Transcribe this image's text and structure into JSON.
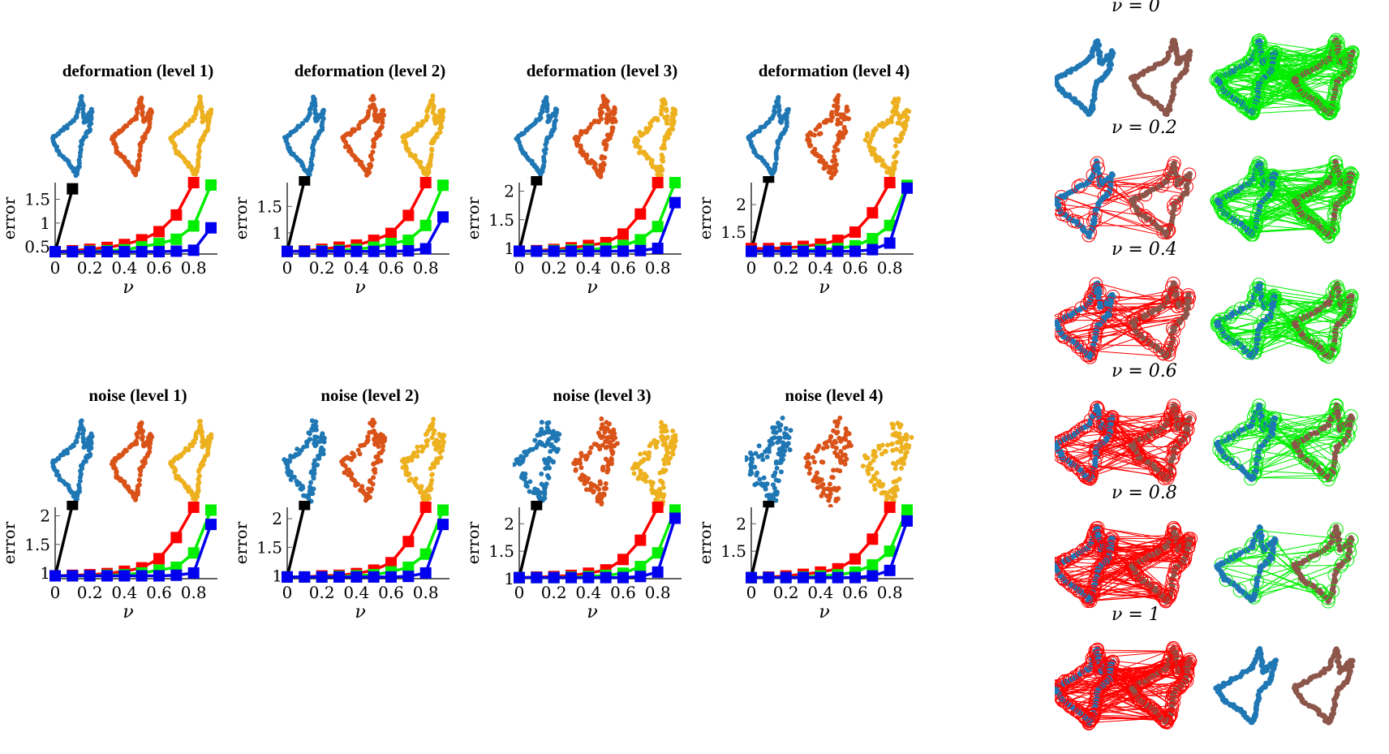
{
  "figure": {
    "row_titles_top": [
      "deformation (level 1)",
      "deformation (level 2)",
      "deformation (level 3)",
      "deformation (level 4)"
    ],
    "row_titles_bottom": [
      "noise (level 1)",
      "noise (level 2)",
      "noise (level 3)",
      "noise (level 4)"
    ],
    "right_column_titles": [
      "ν = 0",
      "ν = 0.2",
      "ν = 0.4",
      "ν = 0.6",
      "ν = 0.8",
      "ν = 1"
    ],
    "xlabel": "ν",
    "ylabel": "error",
    "shape_colors": {
      "blue": "#1f77b4",
      "orange": "#d95319",
      "yellow": "#edb120",
      "brown": "#8c564b"
    },
    "match_colors": {
      "wrong": "#ff0000",
      "correct": "#00ee00"
    }
  },
  "chart_data": [
    {
      "type": "line",
      "title": "deformation (level 1)",
      "xlabel": "ν",
      "ylabel": "error",
      "x": [
        0,
        0.1,
        0.2,
        0.3,
        0.4,
        0.5,
        0.6,
        0.7,
        0.8,
        0.9
      ],
      "xticks": [
        "0",
        "0.2",
        "0.4",
        "0.6",
        "0.8"
      ],
      "yticks": [
        "0.5",
        "1",
        "1.5"
      ],
      "ylim": [
        0.35,
        1.85
      ],
      "series": [
        {
          "name": "black",
          "color": "#000000",
          "values": [
            0.4,
            1.72,
            null,
            null,
            null,
            null,
            null,
            null,
            null,
            null
          ]
        },
        {
          "name": "red",
          "color": "#ff0000",
          "values": [
            0.4,
            0.42,
            0.45,
            0.49,
            0.55,
            0.65,
            0.82,
            1.17,
            1.85,
            null
          ]
        },
        {
          "name": "green",
          "color": "#00ee00",
          "values": [
            0.4,
            0.4,
            0.41,
            0.42,
            0.44,
            0.5,
            0.57,
            0.66,
            0.94,
            1.8
          ]
        },
        {
          "name": "blue",
          "color": "#0000ee",
          "values": [
            0.4,
            0.4,
            0.4,
            0.4,
            0.4,
            0.4,
            0.4,
            0.41,
            0.43,
            0.9
          ]
        }
      ]
    },
    {
      "type": "line",
      "title": "deformation (level 2)",
      "xlabel": "ν",
      "ylabel": "error",
      "x": [
        0,
        0.1,
        0.2,
        0.3,
        0.4,
        0.5,
        0.6,
        0.7,
        0.8,
        0.9
      ],
      "xticks": [
        "0",
        "0.2",
        "0.4",
        "0.6",
        "0.8"
      ],
      "yticks": [
        "1",
        "1.5"
      ],
      "ylim": [
        0.6,
        1.95
      ],
      "series": [
        {
          "name": "black",
          "color": "#000000",
          "values": [
            0.65,
            2.0,
            null,
            null,
            null,
            null,
            null,
            null,
            null,
            null
          ]
        },
        {
          "name": "red",
          "color": "#ff0000",
          "values": [
            0.65,
            0.66,
            0.69,
            0.73,
            0.77,
            0.86,
            0.99,
            1.33,
            1.95,
            null
          ]
        },
        {
          "name": "green",
          "color": "#00ee00",
          "values": [
            0.65,
            0.65,
            0.66,
            0.67,
            0.69,
            0.73,
            0.8,
            0.86,
            1.14,
            1.9
          ]
        },
        {
          "name": "blue",
          "color": "#0000ee",
          "values": [
            0.65,
            0.65,
            0.65,
            0.65,
            0.65,
            0.65,
            0.65,
            0.66,
            0.7,
            1.3
          ]
        }
      ]
    },
    {
      "type": "line",
      "title": "deformation (level 3)",
      "xlabel": "ν",
      "ylabel": "error",
      "x": [
        0,
        0.1,
        0.2,
        0.3,
        0.4,
        0.5,
        0.6,
        0.7,
        0.8,
        0.9
      ],
      "xticks": [
        "0",
        "0.2",
        "0.4",
        "0.6",
        "0.8"
      ],
      "yticks": [
        "1",
        "1.5",
        "2"
      ],
      "ylim": [
        0.9,
        2.15
      ],
      "series": [
        {
          "name": "black",
          "color": "#000000",
          "values": [
            0.95,
            2.2,
            null,
            null,
            null,
            null,
            null,
            null,
            null,
            null
          ]
        },
        {
          "name": "red",
          "color": "#ff0000",
          "values": [
            0.95,
            0.96,
            0.98,
            1.01,
            1.05,
            1.1,
            1.25,
            1.6,
            2.15,
            null
          ]
        },
        {
          "name": "green",
          "color": "#00ee00",
          "values": [
            0.95,
            0.95,
            0.96,
            0.97,
            0.98,
            1.0,
            1.05,
            1.15,
            1.38,
            2.15
          ]
        },
        {
          "name": "blue",
          "color": "#0000ee",
          "values": [
            0.95,
            0.95,
            0.95,
            0.95,
            0.95,
            0.95,
            0.95,
            0.96,
            1.0,
            1.8
          ]
        }
      ]
    },
    {
      "type": "line",
      "title": "deformation (level 4)",
      "xlabel": "ν",
      "ylabel": "error",
      "x": [
        0,
        0.1,
        0.2,
        0.3,
        0.4,
        0.5,
        0.6,
        0.7,
        0.8,
        0.9
      ],
      "xticks": [
        "0",
        "0.2",
        "0.4",
        "0.6",
        "0.8"
      ],
      "yticks": [
        "1.5",
        "2"
      ],
      "ylim": [
        1.1,
        2.4
      ],
      "series": [
        {
          "name": "black",
          "color": "#000000",
          "values": [
            1.15,
            2.5,
            null,
            null,
            null,
            null,
            null,
            null,
            null,
            null
          ]
        },
        {
          "name": "red",
          "color": "#ff0000",
          "values": [
            1.2,
            1.2,
            1.21,
            1.24,
            1.28,
            1.35,
            1.5,
            1.85,
            2.4,
            null
          ]
        },
        {
          "name": "green",
          "color": "#00ee00",
          "values": [
            1.15,
            1.15,
            1.16,
            1.17,
            1.18,
            1.2,
            1.25,
            1.38,
            1.62,
            2.35
          ]
        },
        {
          "name": "blue",
          "color": "#0000ee",
          "values": [
            1.15,
            1.15,
            1.15,
            1.15,
            1.15,
            1.15,
            1.15,
            1.18,
            1.3,
            2.3
          ]
        }
      ]
    },
    {
      "type": "line",
      "title": "noise (level 1)",
      "xlabel": "ν",
      "ylabel": "error",
      "x": [
        0,
        0.1,
        0.2,
        0.3,
        0.4,
        0.5,
        0.6,
        0.7,
        0.8,
        0.9
      ],
      "xticks": [
        "0",
        "0.2",
        "0.4",
        "0.6",
        "0.8"
      ],
      "yticks": [
        "1",
        "1.5",
        "2"
      ],
      "ylim": [
        0.9,
        2.15
      ],
      "series": [
        {
          "name": "black",
          "color": "#000000",
          "values": [
            0.95,
            2.2,
            null,
            null,
            null,
            null,
            null,
            null,
            null,
            null
          ]
        },
        {
          "name": "red",
          "color": "#ff0000",
          "values": [
            0.95,
            0.96,
            0.97,
            0.99,
            1.03,
            1.09,
            1.25,
            1.62,
            2.15,
            null
          ]
        },
        {
          "name": "green",
          "color": "#00ee00",
          "values": [
            0.95,
            0.95,
            0.95,
            0.96,
            0.97,
            1.0,
            1.05,
            1.1,
            1.35,
            2.1
          ]
        },
        {
          "name": "blue",
          "color": "#0000ee",
          "values": [
            0.95,
            0.95,
            0.95,
            0.95,
            0.95,
            0.95,
            0.95,
            0.96,
            1.0,
            1.85
          ]
        }
      ]
    },
    {
      "type": "line",
      "title": "noise (level 2)",
      "xlabel": "ν",
      "ylabel": "error",
      "x": [
        0,
        0.1,
        0.2,
        0.3,
        0.4,
        0.5,
        0.6,
        0.7,
        0.8,
        0.9
      ],
      "xticks": [
        "0",
        "0.2",
        "0.4",
        "0.6",
        "0.8"
      ],
      "yticks": [
        "1",
        "1.5",
        "2"
      ],
      "ylim": [
        0.95,
        2.2
      ],
      "series": [
        {
          "name": "black",
          "color": "#000000",
          "values": [
            0.98,
            2.25,
            null,
            null,
            null,
            null,
            null,
            null,
            null,
            null
          ]
        },
        {
          "name": "red",
          "color": "#ff0000",
          "values": [
            0.98,
            0.98,
            1.0,
            1.01,
            1.04,
            1.1,
            1.23,
            1.6,
            2.2,
            null
          ]
        },
        {
          "name": "green",
          "color": "#00ee00",
          "values": [
            0.98,
            0.98,
            0.98,
            0.99,
            1.0,
            1.02,
            1.07,
            1.15,
            1.38,
            2.15
          ]
        },
        {
          "name": "blue",
          "color": "#0000ee",
          "values": [
            0.98,
            0.98,
            0.98,
            0.98,
            0.98,
            0.98,
            0.98,
            0.99,
            1.05,
            1.9
          ]
        }
      ]
    },
    {
      "type": "line",
      "title": "noise (level 3)",
      "xlabel": "ν",
      "ylabel": "error",
      "x": [
        0,
        0.1,
        0.2,
        0.3,
        0.4,
        0.5,
        0.6,
        0.7,
        0.8,
        0.9
      ],
      "xticks": [
        "0",
        "0.2",
        "0.4",
        "0.6",
        "0.8"
      ],
      "yticks": [
        "1",
        "1.5",
        "2"
      ],
      "ylim": [
        1.0,
        2.3
      ],
      "series": [
        {
          "name": "black",
          "color": "#000000",
          "values": [
            1.02,
            2.35,
            null,
            null,
            null,
            null,
            null,
            null,
            null,
            null
          ]
        },
        {
          "name": "red",
          "color": "#ff0000",
          "values": [
            1.02,
            1.03,
            1.04,
            1.06,
            1.1,
            1.16,
            1.35,
            1.7,
            2.3,
            null
          ]
        },
        {
          "name": "green",
          "color": "#00ee00",
          "values": [
            1.02,
            1.02,
            1.02,
            1.03,
            1.04,
            1.06,
            1.1,
            1.22,
            1.47,
            2.25
          ]
        },
        {
          "name": "blue",
          "color": "#0000ee",
          "values": [
            1.02,
            1.02,
            1.02,
            1.02,
            1.02,
            1.02,
            1.02,
            1.04,
            1.12,
            2.1
          ]
        }
      ]
    },
    {
      "type": "line",
      "title": "noise (level 4)",
      "xlabel": "ν",
      "ylabel": "error",
      "x": [
        0,
        0.1,
        0.2,
        0.3,
        0.4,
        0.5,
        0.6,
        0.7,
        0.8,
        0.9
      ],
      "xticks": [
        "0",
        "0.2",
        "0.4",
        "0.6",
        "0.8"
      ],
      "yticks": [
        "1.5",
        "2"
      ],
      "ylim": [
        1.0,
        2.3
      ],
      "series": [
        {
          "name": "black",
          "color": "#000000",
          "values": [
            1.02,
            2.4,
            null,
            null,
            null,
            null,
            null,
            null,
            null,
            null
          ]
        },
        {
          "name": "red",
          "color": "#ff0000",
          "values": [
            1.02,
            1.03,
            1.05,
            1.08,
            1.12,
            1.18,
            1.36,
            1.72,
            2.3,
            null
          ]
        },
        {
          "name": "green",
          "color": "#00ee00",
          "values": [
            1.02,
            1.02,
            1.02,
            1.03,
            1.05,
            1.07,
            1.12,
            1.25,
            1.5,
            2.25
          ]
        },
        {
          "name": "blue",
          "color": "#0000ee",
          "values": [
            1.02,
            1.02,
            1.02,
            1.02,
            1.02,
            1.02,
            1.02,
            1.05,
            1.15,
            2.05
          ]
        }
      ]
    }
  ]
}
